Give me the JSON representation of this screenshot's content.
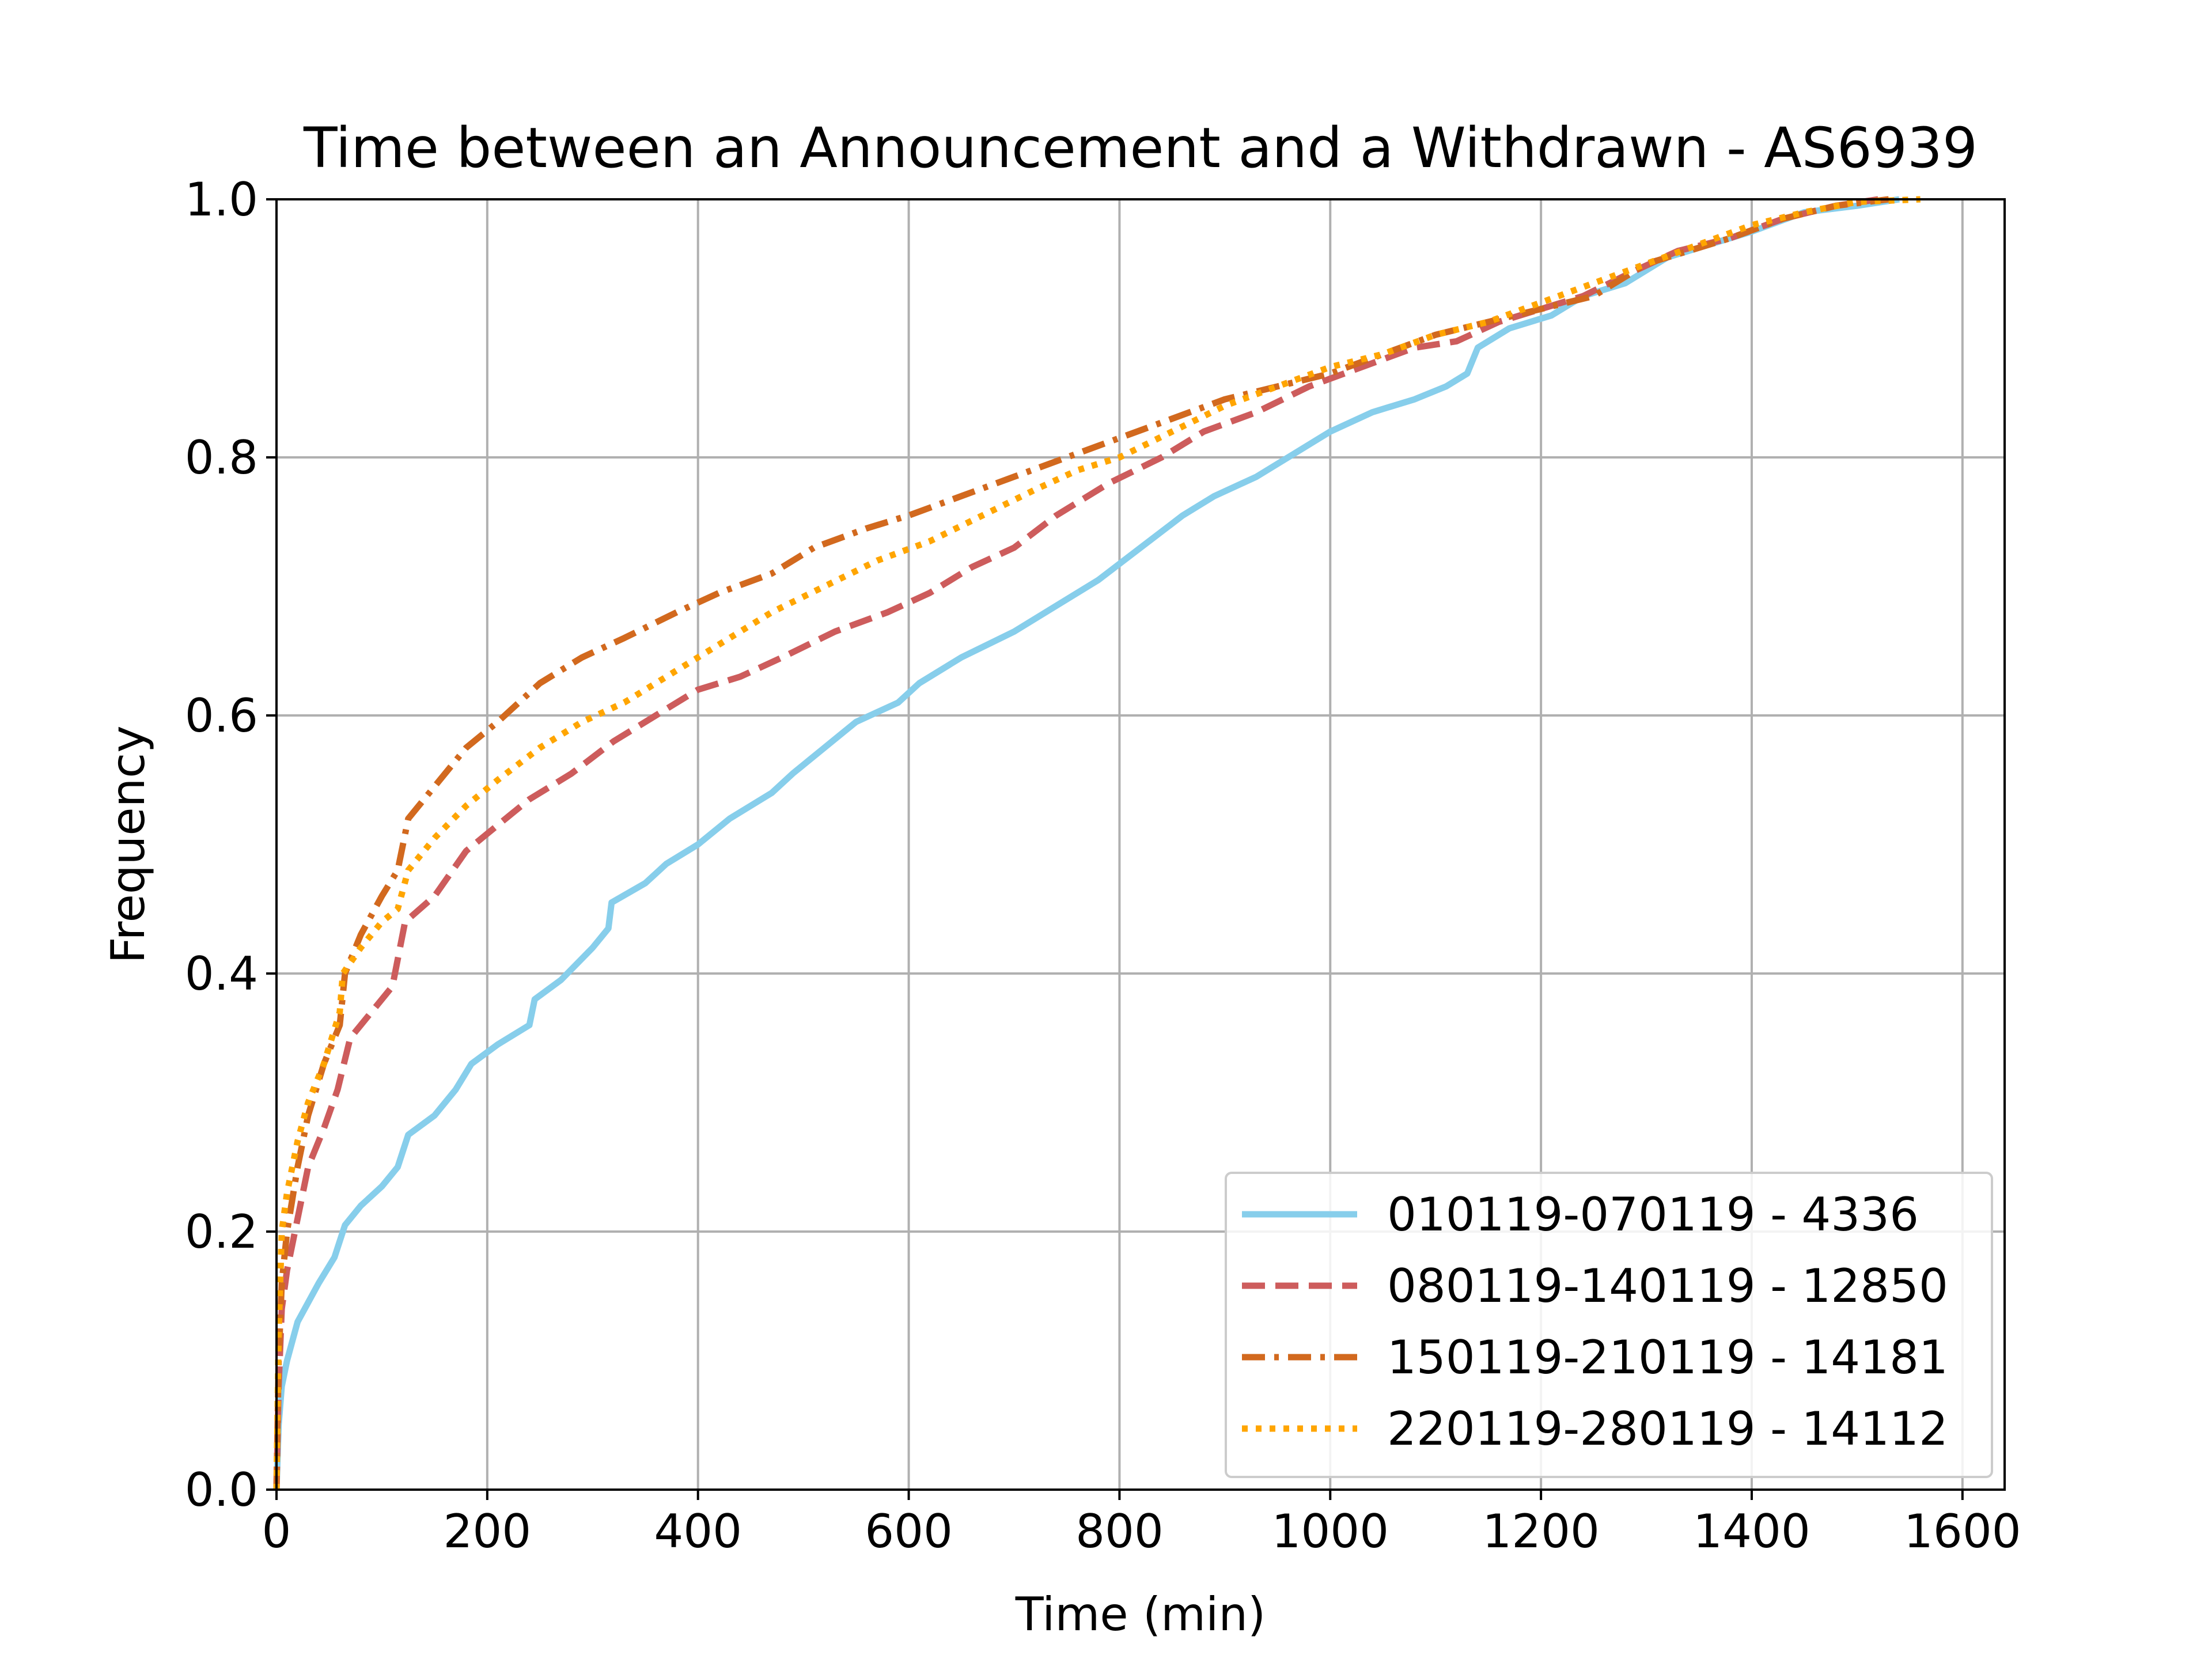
{
  "chart_data": {
    "type": "line",
    "title": "Time between an Announcement and a Withdrawn - AS6939",
    "xlabel": "Time (min)",
    "ylabel": "Frequency",
    "xlim": [
      0,
      1640
    ],
    "ylim": [
      0.0,
      1.0
    ],
    "xticks": [
      "0",
      "200",
      "400",
      "600",
      "800",
      "1000",
      "1200",
      "1400",
      "1600"
    ],
    "yticks": [
      "0.0",
      "0.2",
      "0.4",
      "0.6",
      "0.8",
      "1.0"
    ],
    "grid": true,
    "legend_position": "lower-right",
    "series": [
      {
        "name": "010119-070119 - 4336",
        "color": "#87ceeb",
        "dash": "solid",
        "points": [
          [
            0,
            0
          ],
          [
            2,
            0.05
          ],
          [
            5,
            0.08
          ],
          [
            10,
            0.1
          ],
          [
            20,
            0.13
          ],
          [
            40,
            0.16
          ],
          [
            55,
            0.18
          ],
          [
            65,
            0.205
          ],
          [
            80,
            0.22
          ],
          [
            100,
            0.235
          ],
          [
            115,
            0.25
          ],
          [
            125,
            0.275
          ],
          [
            150,
            0.29
          ],
          [
            170,
            0.31
          ],
          [
            185,
            0.33
          ],
          [
            210,
            0.345
          ],
          [
            240,
            0.36
          ],
          [
            245,
            0.38
          ],
          [
            270,
            0.395
          ],
          [
            300,
            0.42
          ],
          [
            315,
            0.435
          ],
          [
            318,
            0.455
          ],
          [
            350,
            0.47
          ],
          [
            370,
            0.485
          ],
          [
            400,
            0.5
          ],
          [
            430,
            0.52
          ],
          [
            470,
            0.54
          ],
          [
            490,
            0.555
          ],
          [
            520,
            0.575
          ],
          [
            550,
            0.595
          ],
          [
            590,
            0.61
          ],
          [
            610,
            0.625
          ],
          [
            650,
            0.645
          ],
          [
            700,
            0.665
          ],
          [
            740,
            0.685
          ],
          [
            780,
            0.705
          ],
          [
            820,
            0.73
          ],
          [
            860,
            0.755
          ],
          [
            890,
            0.77
          ],
          [
            930,
            0.785
          ],
          [
            970,
            0.805
          ],
          [
            1000,
            0.82
          ],
          [
            1040,
            0.835
          ],
          [
            1080,
            0.845
          ],
          [
            1110,
            0.855
          ],
          [
            1130,
            0.865
          ],
          [
            1140,
            0.885
          ],
          [
            1170,
            0.9
          ],
          [
            1210,
            0.91
          ],
          [
            1240,
            0.925
          ],
          [
            1280,
            0.935
          ],
          [
            1320,
            0.955
          ],
          [
            1360,
            0.965
          ],
          [
            1400,
            0.975
          ],
          [
            1450,
            0.99
          ],
          [
            1500,
            0.995
          ],
          [
            1540,
            1.0
          ]
        ]
      },
      {
        "name": "080119-140119 - 12850",
        "color": "#cd5c5c",
        "dash": "dashed",
        "points": [
          [
            0,
            0
          ],
          [
            2,
            0.08
          ],
          [
            5,
            0.14
          ],
          [
            10,
            0.17
          ],
          [
            20,
            0.21
          ],
          [
            30,
            0.25
          ],
          [
            45,
            0.28
          ],
          [
            58,
            0.31
          ],
          [
            70,
            0.35
          ],
          [
            90,
            0.37
          ],
          [
            110,
            0.39
          ],
          [
            122,
            0.44
          ],
          [
            150,
            0.46
          ],
          [
            180,
            0.495
          ],
          [
            210,
            0.515
          ],
          [
            240,
            0.535
          ],
          [
            280,
            0.555
          ],
          [
            320,
            0.58
          ],
          [
            360,
            0.6
          ],
          [
            400,
            0.62
          ],
          [
            440,
            0.63
          ],
          [
            480,
            0.645
          ],
          [
            530,
            0.665
          ],
          [
            580,
            0.68
          ],
          [
            620,
            0.695
          ],
          [
            660,
            0.715
          ],
          [
            700,
            0.73
          ],
          [
            740,
            0.755
          ],
          [
            790,
            0.78
          ],
          [
            840,
            0.8
          ],
          [
            880,
            0.82
          ],
          [
            930,
            0.835
          ],
          [
            980,
            0.855
          ],
          [
            1030,
            0.87
          ],
          [
            1080,
            0.885
          ],
          [
            1120,
            0.89
          ],
          [
            1160,
            0.905
          ],
          [
            1200,
            0.915
          ],
          [
            1240,
            0.925
          ],
          [
            1290,
            0.945
          ],
          [
            1330,
            0.96
          ],
          [
            1380,
            0.97
          ],
          [
            1430,
            0.985
          ],
          [
            1480,
            0.995
          ],
          [
            1520,
            1.0
          ]
        ]
      },
      {
        "name": "150119-210119 - 14181",
        "color": "#d2691e",
        "dash": "dashdot",
        "points": [
          [
            0,
            0
          ],
          [
            2,
            0.1
          ],
          [
            5,
            0.16
          ],
          [
            10,
            0.2
          ],
          [
            20,
            0.25
          ],
          [
            30,
            0.29
          ],
          [
            45,
            0.33
          ],
          [
            60,
            0.36
          ],
          [
            65,
            0.4
          ],
          [
            80,
            0.43
          ],
          [
            100,
            0.46
          ],
          [
            115,
            0.48
          ],
          [
            125,
            0.52
          ],
          [
            150,
            0.545
          ],
          [
            180,
            0.575
          ],
          [
            210,
            0.595
          ],
          [
            250,
            0.625
          ],
          [
            290,
            0.645
          ],
          [
            330,
            0.66
          ],
          [
            380,
            0.68
          ],
          [
            420,
            0.695
          ],
          [
            470,
            0.71
          ],
          [
            510,
            0.73
          ],
          [
            560,
            0.745
          ],
          [
            600,
            0.755
          ],
          [
            650,
            0.77
          ],
          [
            700,
            0.785
          ],
          [
            750,
            0.8
          ],
          [
            800,
            0.815
          ],
          [
            850,
            0.83
          ],
          [
            900,
            0.845
          ],
          [
            950,
            0.855
          ],
          [
            1000,
            0.865
          ],
          [
            1050,
            0.88
          ],
          [
            1100,
            0.895
          ],
          [
            1150,
            0.905
          ],
          [
            1200,
            0.915
          ],
          [
            1250,
            0.925
          ],
          [
            1300,
            0.95
          ],
          [
            1340,
            0.96
          ],
          [
            1380,
            0.97
          ],
          [
            1430,
            0.985
          ],
          [
            1480,
            0.995
          ],
          [
            1530,
            1.0
          ]
        ]
      },
      {
        "name": "220119-280119 - 14112",
        "color": "#ffa500",
        "dash": "dotted",
        "points": [
          [
            0,
            0
          ],
          [
            2,
            0.12
          ],
          [
            5,
            0.2
          ],
          [
            10,
            0.23
          ],
          [
            20,
            0.27
          ],
          [
            30,
            0.3
          ],
          [
            45,
            0.33
          ],
          [
            60,
            0.37
          ],
          [
            63,
            0.4
          ],
          [
            80,
            0.42
          ],
          [
            100,
            0.44
          ],
          [
            115,
            0.45
          ],
          [
            125,
            0.48
          ],
          [
            150,
            0.505
          ],
          [
            180,
            0.53
          ],
          [
            210,
            0.55
          ],
          [
            250,
            0.575
          ],
          [
            290,
            0.595
          ],
          [
            330,
            0.61
          ],
          [
            380,
            0.635
          ],
          [
            420,
            0.655
          ],
          [
            470,
            0.68
          ],
          [
            520,
            0.7
          ],
          [
            570,
            0.72
          ],
          [
            620,
            0.735
          ],
          [
            670,
            0.755
          ],
          [
            720,
            0.775
          ],
          [
            760,
            0.79
          ],
          [
            800,
            0.8
          ],
          [
            850,
            0.82
          ],
          [
            900,
            0.84
          ],
          [
            950,
            0.855
          ],
          [
            1000,
            0.87
          ],
          [
            1050,
            0.88
          ],
          [
            1100,
            0.895
          ],
          [
            1150,
            0.905
          ],
          [
            1200,
            0.92
          ],
          [
            1250,
            0.935
          ],
          [
            1300,
            0.95
          ],
          [
            1350,
            0.965
          ],
          [
            1400,
            0.98
          ],
          [
            1450,
            0.99
          ],
          [
            1500,
            0.998
          ],
          [
            1560,
            1.0
          ]
        ]
      }
    ]
  }
}
